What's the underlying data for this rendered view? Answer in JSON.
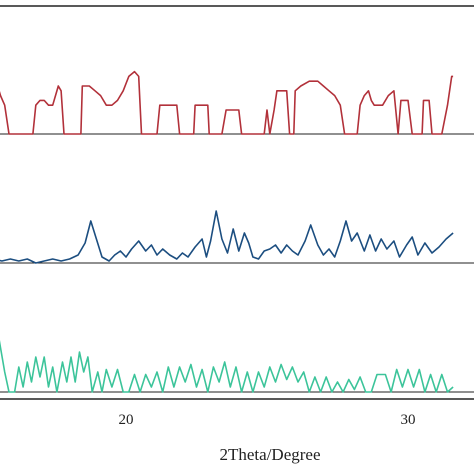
{
  "chart_data": {
    "type": "line",
    "title": "",
    "xlabel": "2Theta/Degree",
    "ylabel": "",
    "xlim": [
      15.3,
      31.6
    ],
    "x_ticks": [
      20,
      30
    ],
    "grid": false,
    "legend": "none",
    "series": [
      {
        "color": "#b2313a",
        "baseline": 0,
        "points": [
          [
            15.3,
            1.0
          ],
          [
            15.45,
            1.0
          ],
          [
            15.55,
            0.8
          ],
          [
            15.7,
            0.6
          ],
          [
            15.85,
            0.0
          ],
          [
            15.95,
            0.0
          ],
          [
            16.1,
            0.0
          ],
          [
            16.5,
            0.0
          ],
          [
            16.7,
            0.0
          ],
          [
            16.8,
            0.6
          ],
          [
            16.95,
            0.7
          ],
          [
            17.1,
            0.7
          ],
          [
            17.25,
            0.6
          ],
          [
            17.4,
            0.6
          ],
          [
            17.5,
            0.8
          ],
          [
            17.6,
            1.0
          ],
          [
            17.7,
            0.9
          ],
          [
            17.8,
            0.0
          ],
          [
            18.0,
            0.0
          ],
          [
            18.1,
            0.0
          ],
          [
            18.4,
            0.0
          ],
          [
            18.45,
            1.0
          ],
          [
            18.7,
            1.0
          ],
          [
            18.9,
            0.9
          ],
          [
            19.1,
            0.8
          ],
          [
            19.3,
            0.6
          ],
          [
            19.5,
            0.6
          ],
          [
            19.7,
            0.7
          ],
          [
            19.9,
            0.9
          ],
          [
            20.1,
            1.2
          ],
          [
            20.3,
            1.3
          ],
          [
            20.45,
            1.2
          ],
          [
            20.55,
            0.0
          ],
          [
            20.75,
            0.0
          ],
          [
            21.1,
            0.0
          ],
          [
            21.2,
            0.6
          ],
          [
            21.8,
            0.6
          ],
          [
            21.9,
            0.0
          ],
          [
            22.4,
            0.0
          ],
          [
            22.45,
            0.6
          ],
          [
            22.9,
            0.6
          ],
          [
            22.95,
            0.0
          ],
          [
            23.4,
            0.0
          ],
          [
            23.55,
            0.5
          ],
          [
            24.0,
            0.5
          ],
          [
            24.1,
            0.0
          ],
          [
            24.9,
            0.0
          ],
          [
            25.0,
            0.5
          ],
          [
            25.1,
            0.0
          ],
          [
            25.25,
            0.5
          ],
          [
            25.35,
            0.9
          ],
          [
            25.7,
            0.9
          ],
          [
            25.8,
            0.0
          ],
          [
            25.95,
            0.0
          ],
          [
            26.0,
            0.9
          ],
          [
            26.2,
            1.0
          ],
          [
            26.5,
            1.1
          ],
          [
            26.8,
            1.1
          ],
          [
            27.0,
            1.0
          ],
          [
            27.2,
            0.9
          ],
          [
            27.4,
            0.8
          ],
          [
            27.6,
            0.6
          ],
          [
            27.75,
            0.0
          ],
          [
            28.2,
            0.0
          ],
          [
            28.3,
            0.6
          ],
          [
            28.45,
            0.8
          ],
          [
            28.6,
            0.9
          ],
          [
            28.7,
            0.7
          ],
          [
            28.8,
            0.6
          ],
          [
            29.1,
            0.6
          ],
          [
            29.3,
            0.8
          ],
          [
            29.5,
            0.9
          ],
          [
            29.65,
            0.0
          ],
          [
            29.75,
            0.7
          ],
          [
            30.0,
            0.7
          ],
          [
            30.15,
            0.0
          ],
          [
            30.5,
            0.0
          ],
          [
            30.55,
            0.7
          ],
          [
            30.75,
            0.7
          ],
          [
            30.85,
            0.0
          ],
          [
            31.2,
            0.0
          ],
          [
            31.4,
            0.6
          ],
          [
            31.55,
            1.2
          ],
          [
            31.6,
            1.2
          ]
        ]
      },
      {
        "color": "#1c4e80",
        "baseline": 0,
        "points": [
          [
            15.3,
            0.1
          ],
          [
            15.6,
            0.05
          ],
          [
            15.9,
            0.1
          ],
          [
            16.2,
            0.05
          ],
          [
            16.5,
            0.1
          ],
          [
            16.8,
            0.0
          ],
          [
            17.1,
            0.05
          ],
          [
            17.4,
            0.1
          ],
          [
            17.7,
            0.05
          ],
          [
            18.0,
            0.1
          ],
          [
            18.3,
            0.2
          ],
          [
            18.55,
            0.5
          ],
          [
            18.75,
            1.05
          ],
          [
            18.95,
            0.6
          ],
          [
            19.15,
            0.15
          ],
          [
            19.4,
            0.05
          ],
          [
            19.6,
            0.2
          ],
          [
            19.8,
            0.3
          ],
          [
            20.0,
            0.15
          ],
          [
            20.2,
            0.35
          ],
          [
            20.45,
            0.55
          ],
          [
            20.7,
            0.3
          ],
          [
            20.9,
            0.45
          ],
          [
            21.1,
            0.2
          ],
          [
            21.3,
            0.35
          ],
          [
            21.55,
            0.2
          ],
          [
            21.8,
            0.1
          ],
          [
            22.0,
            0.25
          ],
          [
            22.2,
            0.15
          ],
          [
            22.45,
            0.4
          ],
          [
            22.7,
            0.6
          ],
          [
            22.85,
            0.15
          ],
          [
            23.0,
            0.55
          ],
          [
            23.2,
            1.3
          ],
          [
            23.4,
            0.6
          ],
          [
            23.6,
            0.25
          ],
          [
            23.8,
            0.85
          ],
          [
            24.0,
            0.3
          ],
          [
            24.2,
            0.75
          ],
          [
            24.35,
            0.5
          ],
          [
            24.5,
            0.15
          ],
          [
            24.7,
            0.1
          ],
          [
            24.9,
            0.3
          ],
          [
            25.1,
            0.35
          ],
          [
            25.3,
            0.45
          ],
          [
            25.5,
            0.25
          ],
          [
            25.7,
            0.45
          ],
          [
            25.9,
            0.3
          ],
          [
            26.1,
            0.2
          ],
          [
            26.35,
            0.55
          ],
          [
            26.55,
            0.95
          ],
          [
            26.8,
            0.45
          ],
          [
            27.0,
            0.2
          ],
          [
            27.2,
            0.35
          ],
          [
            27.4,
            0.15
          ],
          [
            27.6,
            0.55
          ],
          [
            27.8,
            1.05
          ],
          [
            28.0,
            0.55
          ],
          [
            28.2,
            0.75
          ],
          [
            28.45,
            0.3
          ],
          [
            28.65,
            0.7
          ],
          [
            28.85,
            0.3
          ],
          [
            29.05,
            0.6
          ],
          [
            29.25,
            0.35
          ],
          [
            29.5,
            0.55
          ],
          [
            29.7,
            0.15
          ],
          [
            29.95,
            0.45
          ],
          [
            30.15,
            0.65
          ],
          [
            30.35,
            0.2
          ],
          [
            30.6,
            0.5
          ],
          [
            30.85,
            0.25
          ],
          [
            31.1,
            0.4
          ],
          [
            31.35,
            0.6
          ],
          [
            31.6,
            0.75
          ]
        ]
      },
      {
        "color": "#3cc49a",
        "baseline": 0,
        "points": [
          [
            15.3,
            1.2
          ],
          [
            15.5,
            1.05
          ],
          [
            15.7,
            0.4
          ],
          [
            15.85,
            0.0
          ],
          [
            16.05,
            0.0
          ],
          [
            16.2,
            0.5
          ],
          [
            16.35,
            0.1
          ],
          [
            16.5,
            0.6
          ],
          [
            16.65,
            0.2
          ],
          [
            16.8,
            0.7
          ],
          [
            16.95,
            0.3
          ],
          [
            17.1,
            0.7
          ],
          [
            17.25,
            0.1
          ],
          [
            17.4,
            0.5
          ],
          [
            17.55,
            0.0
          ],
          [
            17.75,
            0.6
          ],
          [
            17.9,
            0.2
          ],
          [
            18.05,
            0.7
          ],
          [
            18.2,
            0.2
          ],
          [
            18.35,
            0.8
          ],
          [
            18.5,
            0.4
          ],
          [
            18.65,
            0.7
          ],
          [
            18.8,
            0.0
          ],
          [
            19.0,
            0.4
          ],
          [
            19.15,
            0.0
          ],
          [
            19.3,
            0.45
          ],
          [
            19.5,
            0.1
          ],
          [
            19.7,
            0.45
          ],
          [
            19.9,
            0.0
          ],
          [
            20.1,
            0.0
          ],
          [
            20.3,
            0.35
          ],
          [
            20.5,
            0.0
          ],
          [
            20.7,
            0.35
          ],
          [
            20.9,
            0.1
          ],
          [
            21.1,
            0.4
          ],
          [
            21.3,
            0.0
          ],
          [
            21.5,
            0.5
          ],
          [
            21.7,
            0.1
          ],
          [
            21.9,
            0.5
          ],
          [
            22.1,
            0.2
          ],
          [
            22.3,
            0.55
          ],
          [
            22.5,
            0.1
          ],
          [
            22.7,
            0.45
          ],
          [
            22.9,
            0.0
          ],
          [
            23.1,
            0.5
          ],
          [
            23.3,
            0.2
          ],
          [
            23.5,
            0.6
          ],
          [
            23.7,
            0.1
          ],
          [
            23.9,
            0.5
          ],
          [
            24.1,
            0.0
          ],
          [
            24.3,
            0.4
          ],
          [
            24.5,
            0.0
          ],
          [
            24.7,
            0.4
          ],
          [
            24.9,
            0.1
          ],
          [
            25.1,
            0.5
          ],
          [
            25.3,
            0.2
          ],
          [
            25.5,
            0.55
          ],
          [
            25.7,
            0.25
          ],
          [
            25.9,
            0.5
          ],
          [
            26.1,
            0.2
          ],
          [
            26.3,
            0.4
          ],
          [
            26.5,
            0.0
          ],
          [
            26.7,
            0.3
          ],
          [
            26.9,
            0.0
          ],
          [
            27.1,
            0.3
          ],
          [
            27.3,
            0.0
          ],
          [
            27.5,
            0.2
          ],
          [
            27.7,
            0.0
          ],
          [
            27.9,
            0.25
          ],
          [
            28.1,
            0.05
          ],
          [
            28.3,
            0.3
          ],
          [
            28.5,
            0.0
          ],
          [
            28.7,
            0.0
          ],
          [
            28.9,
            0.35
          ],
          [
            29.2,
            0.35
          ],
          [
            29.4,
            0.0
          ],
          [
            29.6,
            0.45
          ],
          [
            29.8,
            0.1
          ],
          [
            30.0,
            0.45
          ],
          [
            30.2,
            0.1
          ],
          [
            30.4,
            0.45
          ],
          [
            30.6,
            0.0
          ],
          [
            30.8,
            0.35
          ],
          [
            31.0,
            0.0
          ],
          [
            31.2,
            0.35
          ],
          [
            31.4,
            0.0
          ],
          [
            31.6,
            0.1
          ]
        ]
      }
    ]
  }
}
